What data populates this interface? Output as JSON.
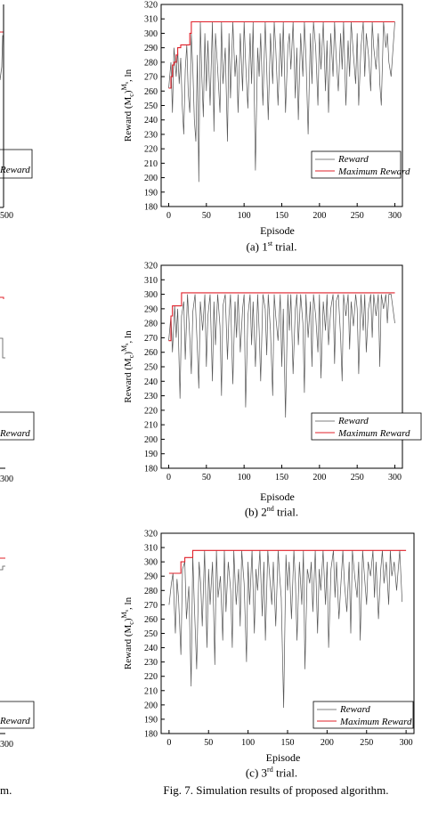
{
  "figure_caption": "Fig. 7. Simulation results of proposed algorithm.",
  "left_cut_caption": "m.",
  "left_cut_ticks": [
    "500",
    "300",
    "300"
  ],
  "left_cut_legend": "Reward",
  "charts": [
    {
      "caption_prefix": "(a) 1",
      "caption_sup": "st",
      "caption_suffix": " trial."
    },
    {
      "caption_prefix": "(b) 2",
      "caption_sup": "nd",
      "caption_suffix": " trial."
    },
    {
      "caption_prefix": "(c) 3",
      "caption_sup": "rd",
      "caption_suffix": " trial."
    }
  ],
  "chart_data": [
    {
      "type": "line",
      "xlabel": "Episode",
      "ylabel": "Reward (M",
      "ylabel_sub": "c",
      "ylabel_sup": "M",
      "ylabel_supsub": "s",
      "ylabel_tail": ", ln",
      "xlim": [
        -10,
        310
      ],
      "ylim": [
        180,
        320
      ],
      "xticks": [
        0,
        50,
        100,
        150,
        200,
        250,
        300
      ],
      "yticks": [
        180,
        190,
        200,
        210,
        220,
        230,
        240,
        250,
        260,
        270,
        280,
        290,
        300,
        310,
        320
      ],
      "legend": "right",
      "legend_placement": "lower-right",
      "colors": {
        "reward": "#555555",
        "maximum": "#e0202a"
      },
      "series": [
        {
          "name": "Reward",
          "x": [
            0,
            3,
            5,
            7,
            10,
            12,
            14,
            16,
            18,
            20,
            22,
            24,
            26,
            28,
            30,
            32,
            34,
            36,
            38,
            40,
            42,
            44,
            46,
            48,
            50,
            52,
            55,
            58,
            60,
            62,
            65,
            68,
            70,
            72,
            75,
            78,
            80,
            82,
            85,
            88,
            90,
            92,
            95,
            98,
            100,
            102,
            105,
            108,
            110,
            112,
            115,
            118,
            120,
            122,
            125,
            128,
            130,
            132,
            135,
            138,
            140,
            142,
            145,
            148,
            150,
            152,
            155,
            158,
            160,
            162,
            165,
            168,
            170,
            172,
            175,
            178,
            180,
            182,
            185,
            188,
            190,
            192,
            195,
            198,
            200,
            202,
            205,
            208,
            210,
            212,
            215,
            218,
            220,
            222,
            225,
            228,
            230,
            232,
            235,
            238,
            240,
            242,
            245,
            248,
            250,
            252,
            255,
            258,
            260,
            262,
            265,
            268,
            270,
            272,
            275,
            278,
            280,
            282,
            285,
            288,
            290,
            292,
            295,
            300
          ],
          "values": [
            262,
            280,
            245,
            290,
            270,
            288,
            265,
            283,
            250,
            230,
            275,
            292,
            258,
            245,
            300,
            275,
            240,
            225,
            285,
            197,
            308,
            270,
            242,
            300,
            260,
            295,
            250,
            308,
            232,
            300,
            275,
            245,
            308,
            265,
            290,
            225,
            300,
            255,
            308,
            270,
            285,
            245,
            300,
            260,
            308,
            280,
            248,
            300,
            265,
            308,
            205,
            290,
            270,
            300,
            250,
            308,
            275,
            240,
            300,
            265,
            308,
            290,
            250,
            300,
            270,
            308,
            245,
            290,
            300,
            275,
            308,
            255,
            290,
            240,
            300,
            270,
            308,
            285,
            230,
            300,
            265,
            308,
            290,
            250,
            300,
            275,
            308,
            260,
            295,
            245,
            300,
            270,
            308,
            285,
            260,
            300,
            275,
            308,
            250,
            295,
            270,
            308,
            285,
            265,
            300,
            250,
            290,
            308,
            270,
            300,
            285,
            260,
            308,
            290,
            275,
            300,
            265,
            250,
            308,
            290,
            300,
            280,
            270,
            308
          ]
        },
        {
          "name": "Maximum Reward",
          "x": [
            0,
            3,
            5,
            7,
            10,
            12,
            14,
            16,
            18,
            20,
            22,
            24,
            26,
            28,
            30,
            300
          ],
          "values": [
            262,
            270,
            278,
            280,
            285,
            290,
            290,
            292,
            292,
            292,
            292,
            292,
            292,
            300,
            308,
            308
          ]
        }
      ]
    },
    {
      "type": "line",
      "xlabel": "Episode",
      "ylabel": "Reward (M",
      "ylabel_sub": "c",
      "ylabel_sup": "M",
      "ylabel_supsub": "s",
      "ylabel_tail": ", ln",
      "xlim": [
        -10,
        310
      ],
      "ylim": [
        180,
        320
      ],
      "xticks": [
        0,
        50,
        100,
        150,
        200,
        250,
        300
      ],
      "yticks": [
        180,
        190,
        200,
        210,
        220,
        230,
        240,
        250,
        260,
        270,
        280,
        290,
        300,
        310,
        320
      ],
      "legend": "right",
      "legend_placement": "lower-right",
      "colors": {
        "reward": "#555555",
        "maximum": "#e0202a"
      },
      "series": [
        {
          "name": "Reward",
          "x": [
            0,
            3,
            5,
            8,
            10,
            12,
            15,
            17,
            20,
            22,
            25,
            28,
            30,
            32,
            35,
            38,
            40,
            42,
            45,
            48,
            50,
            52,
            55,
            58,
            60,
            62,
            65,
            68,
            70,
            72,
            75,
            78,
            80,
            82,
            85,
            88,
            90,
            92,
            95,
            98,
            100,
            102,
            105,
            108,
            110,
            112,
            115,
            118,
            120,
            122,
            125,
            128,
            130,
            132,
            135,
            138,
            140,
            142,
            145,
            148,
            150,
            152,
            155,
            158,
            160,
            162,
            165,
            168,
            170,
            172,
            175,
            178,
            180,
            182,
            185,
            188,
            190,
            192,
            195,
            198,
            200,
            202,
            205,
            208,
            210,
            212,
            215,
            218,
            220,
            222,
            225,
            228,
            230,
            232,
            235,
            238,
            240,
            242,
            245,
            248,
            250,
            252,
            255,
            258,
            260,
            262,
            265,
            268,
            270,
            272,
            275,
            278,
            280,
            282,
            285,
            288,
            290,
            292,
            295,
            300
          ],
          "values": [
            268,
            285,
            260,
            292,
            270,
            290,
            228,
            285,
            295,
            255,
            300,
            270,
            245,
            288,
            300,
            262,
            235,
            295,
            275,
            300,
            250,
            285,
            300,
            240,
            295,
            265,
            300,
            278,
            230,
            292,
            300,
            255,
            285,
            300,
            238,
            295,
            270,
            300,
            260,
            290,
            300,
            222,
            285,
            300,
            265,
            295,
            250,
            300,
            275,
            240,
            300,
            290,
            258,
            300,
            275,
            230,
            300,
            285,
            268,
            300,
            250,
            290,
            215,
            300,
            275,
            300,
            245,
            290,
            300,
            265,
            300,
            280,
            232,
            300,
            270,
            295,
            250,
            300,
            285,
            260,
            300,
            242,
            295,
            275,
            300,
            265,
            290,
            300,
            252,
            295,
            300,
            270,
            240,
            300,
            285,
            300,
            262,
            295,
            278,
            300,
            290,
            245,
            300,
            275,
            300,
            260,
            290,
            300,
            270,
            300,
            285,
            300,
            250,
            300,
            290,
            300,
            280,
            300,
            300,
            280
          ]
        },
        {
          "name": "Maximum Reward",
          "x": [
            0,
            3,
            5,
            8,
            10,
            12,
            15,
            17,
            300
          ],
          "values": [
            268,
            285,
            292,
            292,
            292,
            292,
            292,
            301,
            301
          ]
        }
      ]
    },
    {
      "type": "line",
      "xlabel": "Episode",
      "ylabel": "Reward (M",
      "ylabel_sub": "c",
      "ylabel_sup": "M",
      "ylabel_supsub": "s",
      "ylabel_tail": ", ln",
      "xlim": [
        -10,
        310
      ],
      "ylim": [
        180,
        320
      ],
      "xticks": [
        0,
        50,
        100,
        150,
        200,
        250,
        300
      ],
      "yticks": [
        180,
        190,
        200,
        210,
        220,
        230,
        240,
        250,
        260,
        270,
        280,
        290,
        300,
        310,
        320
      ],
      "legend": "right",
      "legend_placement": "lower-right",
      "colors": {
        "reward": "#555555",
        "maximum": "#e0202a"
      },
      "series": [
        {
          "name": "Reward",
          "x": [
            0,
            3,
            5,
            8,
            10,
            12,
            15,
            17,
            20,
            22,
            25,
            28,
            30,
            32,
            35,
            38,
            40,
            42,
            45,
            48,
            50,
            52,
            55,
            58,
            60,
            62,
            65,
            68,
            70,
            72,
            75,
            78,
            80,
            82,
            85,
            88,
            90,
            92,
            95,
            98,
            100,
            102,
            105,
            108,
            110,
            112,
            115,
            118,
            120,
            122,
            125,
            128,
            130,
            132,
            135,
            138,
            140,
            142,
            145,
            148,
            150,
            152,
            155,
            158,
            160,
            162,
            165,
            168,
            170,
            172,
            175,
            178,
            180,
            182,
            185,
            188,
            190,
            192,
            195,
            198,
            200,
            202,
            205,
            208,
            210,
            212,
            215,
            218,
            220,
            222,
            225,
            228,
            230,
            232,
            235,
            238,
            240,
            242,
            245,
            248,
            250,
            252,
            255,
            258,
            260,
            262,
            265,
            268,
            270,
            272,
            275,
            278,
            280,
            282,
            285,
            288,
            290,
            292,
            295
          ],
          "values": [
            270,
            285,
            292,
            250,
            288,
            275,
            235,
            295,
            300,
            260,
            283,
            213,
            305,
            270,
            225,
            300,
            285,
            255,
            308,
            240,
            295,
            270,
            300,
            228,
            308,
            275,
            290,
            245,
            308,
            265,
            300,
            280,
            240,
            308,
            270,
            295,
            255,
            308,
            285,
            230,
            300,
            270,
            308,
            250,
            295,
            280,
            308,
            262,
            300,
            245,
            308,
            285,
            270,
            300,
            255,
            308,
            290,
            275,
            198,
            305,
            280,
            300,
            260,
            308,
            285,
            245,
            300,
            270,
            308,
            225,
            295,
            285,
            300,
            265,
            308,
            250,
            295,
            280,
            308,
            270,
            300,
            240,
            295,
            308,
            275,
            300,
            260,
            290,
            308,
            285,
            265,
            300,
            250,
            308,
            290,
            275,
            300,
            245,
            308,
            285,
            270,
            300,
            290,
            308,
            275,
            300,
            260,
            295,
            308,
            285,
            300,
            270,
            308,
            290,
            300,
            280,
            295,
            308,
            272
          ]
        },
        {
          "name": "Maximum Reward",
          "x": [
            0,
            3,
            5,
            8,
            10,
            12,
            15,
            17,
            20,
            22,
            25,
            28,
            30,
            32,
            300
          ],
          "values": [
            292,
            292,
            292,
            292,
            292,
            292,
            300,
            300,
            303,
            303,
            303,
            303,
            308,
            308,
            308
          ]
        }
      ]
    }
  ]
}
